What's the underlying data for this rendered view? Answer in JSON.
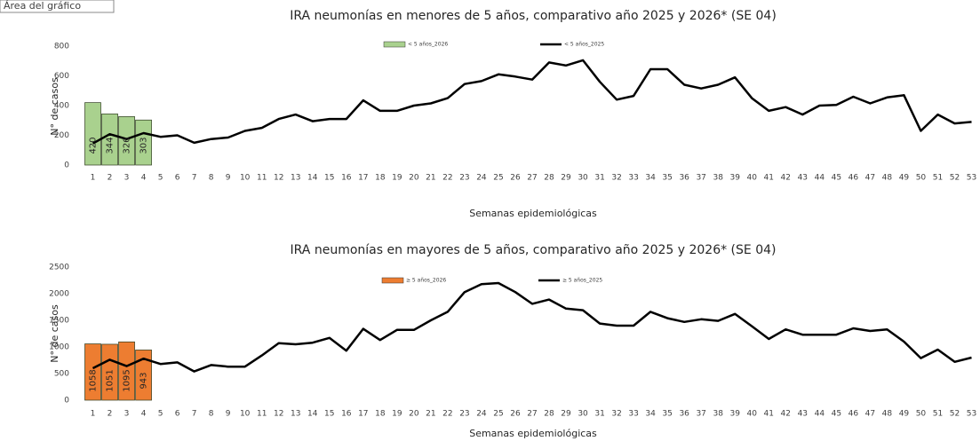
{
  "tooltip": "Área del gráfico",
  "chart_data": [
    {
      "type": "bar",
      "title": "IRA neumonías en menores de 5 años, comparativo año 2025 y 2026* (SE 04)",
      "x_label": "Semanas epidemiológicas",
      "y_label": "N° de casos",
      "categories": [
        "1",
        "2",
        "3",
        "4",
        "5",
        "6",
        "7",
        "8",
        "9",
        "10",
        "11",
        "12",
        "13",
        "14",
        "15",
        "16",
        "17",
        "18",
        "19",
        "20",
        "21",
        "22",
        "23",
        "24",
        "25",
        "26",
        "27",
        "28",
        "29",
        "30",
        "31",
        "32",
        "33",
        "34",
        "35",
        "36",
        "37",
        "38",
        "39",
        "40",
        "41",
        "42",
        "43",
        "44",
        "45",
        "46",
        "47",
        "48",
        "49",
        "50",
        "51",
        "52",
        "53"
      ],
      "ylim": [
        0,
        800
      ],
      "yticks": [
        0,
        200,
        400,
        600,
        800
      ],
      "grid": false,
      "series": [
        {
          "name": "< 5 años_2026",
          "type": "bar",
          "color": "#a9d18e",
          "values": [
            420,
            344,
            326,
            303,
            null,
            null,
            null,
            null,
            null,
            null,
            null,
            null,
            null,
            null,
            null,
            null,
            null,
            null,
            null,
            null,
            null,
            null,
            null,
            null,
            null,
            null,
            null,
            null,
            null,
            null,
            null,
            null,
            null,
            null,
            null,
            null,
            null,
            null,
            null,
            null,
            null,
            null,
            null,
            null,
            null,
            null,
            null,
            null,
            null,
            null,
            null,
            null,
            null
          ]
        },
        {
          "name": "< 5 años_2025",
          "type": "line",
          "color": "#000000",
          "values": [
            145,
            208,
            175,
            215,
            190,
            200,
            150,
            175,
            185,
            230,
            250,
            310,
            340,
            295,
            310,
            310,
            435,
            365,
            365,
            400,
            415,
            450,
            545,
            565,
            610,
            595,
            575,
            690,
            670,
            705,
            560,
            440,
            465,
            645,
            645,
            540,
            515,
            540,
            590,
            450,
            365,
            390,
            340,
            400,
            405,
            460,
            415,
            455,
            470,
            230,
            340,
            280,
            290
          ]
        }
      ]
    },
    {
      "type": "bar",
      "title": "IRA neumonías en mayores de 5 años, comparativo año 2025 y 2026* (SE 04)",
      "x_label": "Semanas epidemiológicas",
      "y_label": "N° de casos",
      "categories": [
        "1",
        "2",
        "3",
        "4",
        "5",
        "6",
        "7",
        "8",
        "9",
        "10",
        "11",
        "12",
        "13",
        "14",
        "15",
        "16",
        "17",
        "18",
        "19",
        "20",
        "21",
        "22",
        "23",
        "24",
        "25",
        "26",
        "27",
        "28",
        "29",
        "30",
        "31",
        "32",
        "33",
        "34",
        "35",
        "36",
        "37",
        "38",
        "39",
        "40",
        "41",
        "42",
        "43",
        "44",
        "45",
        "46",
        "47",
        "48",
        "49",
        "50",
        "51",
        "52",
        "53"
      ],
      "ylim": [
        0,
        2500
      ],
      "yticks": [
        0,
        500,
        1000,
        1500,
        2000,
        2500
      ],
      "grid": false,
      "series": [
        {
          "name": "≥ 5 años_2026",
          "type": "bar",
          "color": "#ed7d31",
          "values": [
            1058,
            1051,
            1095,
            943,
            null,
            null,
            null,
            null,
            null,
            null,
            null,
            null,
            null,
            null,
            null,
            null,
            null,
            null,
            null,
            null,
            null,
            null,
            null,
            null,
            null,
            null,
            null,
            null,
            null,
            null,
            null,
            null,
            null,
            null,
            null,
            null,
            null,
            null,
            null,
            null,
            null,
            null,
            null,
            null,
            null,
            null,
            null,
            null,
            null,
            null,
            null,
            null,
            null
          ]
        },
        {
          "name": "≥ 5 años_2025",
          "type": "line",
          "color": "#000000",
          "values": [
            600,
            760,
            640,
            780,
            680,
            710,
            540,
            660,
            630,
            630,
            840,
            1070,
            1050,
            1080,
            1170,
            930,
            1340,
            1130,
            1320,
            1320,
            1500,
            1660,
            2030,
            2180,
            2200,
            2030,
            1810,
            1890,
            1720,
            1690,
            1440,
            1400,
            1400,
            1660,
            1540,
            1470,
            1520,
            1490,
            1620,
            1390,
            1150,
            1330,
            1230,
            1230,
            1230,
            1350,
            1300,
            1330,
            1100,
            790,
            950,
            720,
            800
          ]
        }
      ]
    }
  ]
}
